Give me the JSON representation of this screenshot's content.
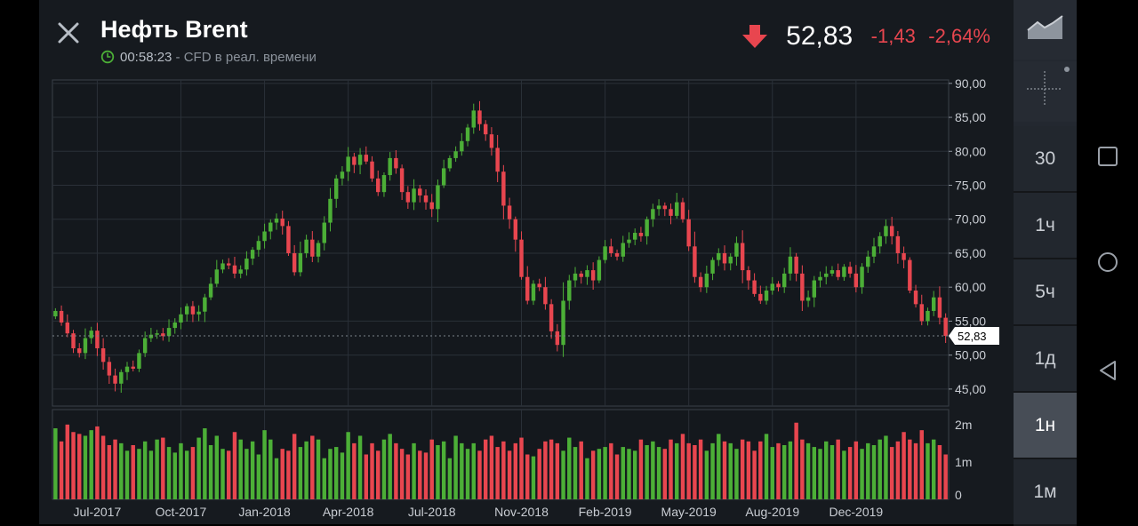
{
  "header": {
    "title": "Нефть Brent",
    "time": "00:58:23",
    "subtitle": " - CFD в реал. времени",
    "last_price": "52,83",
    "change": "-1,43",
    "change_pct": "-2,64%",
    "direction": "down",
    "down_color": "#e8464f"
  },
  "toolbar": {
    "chart_type_icon": "mountain-chart-icon",
    "crosshair_icon": "crosshair-icon",
    "timeframes": [
      "30",
      "1ч",
      "5ч",
      "1д",
      "1н",
      "1м"
    ],
    "active_timeframe": "1н"
  },
  "system_nav": [
    "square-icon",
    "circle-icon",
    "triangle-back-icon"
  ],
  "chart_data": {
    "type": "candlestick",
    "price_axis": {
      "ticks": [
        90,
        85,
        80,
        75,
        70,
        65,
        60,
        55,
        50,
        45
      ],
      "tick_labels": [
        "90,00",
        "85,00",
        "80,00",
        "75,00",
        "70,00",
        "65,00",
        "60,00",
        "55,00",
        "50,00",
        "45,00"
      ],
      "range": [
        42.5,
        90.5
      ],
      "last_price_label": "52,83",
      "last_price": 52.83
    },
    "x_axis": {
      "labels": [
        "Jul-2017",
        "Oct-2017",
        "Jan-2018",
        "Apr-2018",
        "Jul-2018",
        "Nov-2018",
        "Feb-2019",
        "May-2019",
        "Aug-2019",
        "Dec-2019"
      ],
      "label_candle_index": [
        7,
        21,
        35,
        49,
        63,
        78,
        92,
        106,
        120,
        134
      ]
    },
    "volume_axis": {
      "tick_labels": [
        "2m",
        "1m",
        "0"
      ],
      "ticks": [
        2000000,
        1000000,
        0
      ],
      "range": [
        0,
        2400000
      ]
    },
    "colors": {
      "up": "#4caf37",
      "down": "#e8464f"
    },
    "closes": [
      56.5,
      54.8,
      53.2,
      51.0,
      50.3,
      52.5,
      53.6,
      51.0,
      49.0,
      47.0,
      45.8,
      47.5,
      48.3,
      48.0,
      50.3,
      52.5,
      53.0,
      53.2,
      52.8,
      54.0,
      54.8,
      56.0,
      57.2,
      56.0,
      56.4,
      58.5,
      60.5,
      62.6,
      63.5,
      63.2,
      62.0,
      62.6,
      64.2,
      65.5,
      66.8,
      68.2,
      69.5,
      70.1,
      69.0,
      65.0,
      62.2,
      65.0,
      67.0,
      64.5,
      66.5,
      69.5,
      73.0,
      76.0,
      77.0,
      79.2,
      78.0,
      79.5,
      78.5,
      76.0,
      74.0,
      76.5,
      79.0,
      77.5,
      74.0,
      72.5,
      74.5,
      73.5,
      72.5,
      71.5,
      75.0,
      77.5,
      79.0,
      80.0,
      81.5,
      83.5,
      86.0,
      84.0,
      82.5,
      80.5,
      77.0,
      72.0,
      70.0,
      67.0,
      61.5,
      58.0,
      60.5,
      60.0,
      57.5,
      53.5,
      51.5,
      58.0,
      61.0,
      62.0,
      61.5,
      62.5,
      61.0,
      64.0,
      66.0,
      65.0,
      64.5,
      66.5,
      67.0,
      68.0,
      67.5,
      70.0,
      71.5,
      72.0,
      71.5,
      70.5,
      72.5,
      70.0,
      66.0,
      61.5,
      60.0,
      62.0,
      64.0,
      65.0,
      63.5,
      64.5,
      66.5,
      62.5,
      61.0,
      59.0,
      58.0,
      59.5,
      60.5,
      60.0,
      62.0,
      64.5,
      62.0,
      58.0,
      58.5,
      61.0,
      61.5,
      62.0,
      62.5,
      61.5,
      63.0,
      62.0,
      60.0,
      63.0,
      64.5,
      66.0,
      67.5,
      69.0,
      67.5,
      65.0,
      64.0,
      59.5,
      57.5,
      55.0,
      56.5,
      58.5,
      55.5,
      52.83
    ],
    "volumes": [
      1.9,
      1.55,
      2.0,
      1.8,
      1.75,
      1.7,
      1.85,
      1.95,
      1.7,
      1.45,
      1.6,
      1.5,
      1.3,
      1.45,
      1.35,
      1.55,
      1.3,
      1.6,
      1.65,
      1.4,
      1.25,
      1.5,
      1.3,
      1.4,
      1.65,
      1.9,
      1.45,
      1.7,
      1.35,
      1.3,
      1.8,
      1.6,
      1.35,
      1.55,
      1.2,
      1.85,
      1.6,
      1.1,
      1.35,
      1.3,
      1.75,
      1.4,
      1.55,
      1.7,
      1.6,
      1.1,
      1.35,
      1.4,
      1.25,
      1.8,
      1.5,
      1.7,
      1.2,
      1.5,
      1.3,
      1.6,
      1.75,
      1.5,
      1.35,
      1.2,
      1.5,
      1.3,
      1.25,
      1.6,
      1.45,
      1.55,
      1.1,
      1.7,
      1.5,
      1.35,
      1.5,
      1.3,
      1.6,
      1.7,
      1.4,
      1.55,
      1.3,
      1.5,
      1.65,
      1.2,
      1.15,
      1.35,
      1.55,
      1.6,
      1.5,
      1.3,
      1.65,
      1.4,
      1.55,
      1.1,
      1.3,
      1.35,
      1.4,
      1.5,
      1.2,
      1.4,
      1.35,
      1.3,
      1.6,
      1.45,
      1.55,
      1.4,
      1.35,
      1.6,
      1.5,
      1.75,
      1.5,
      1.45,
      1.6,
      1.3,
      1.5,
      1.75,
      1.55,
      1.5,
      1.35,
      1.6,
      1.55,
      1.3,
      1.55,
      1.75,
      1.4,
      1.5,
      1.45,
      1.55,
      2.05,
      1.6,
      1.5,
      1.4,
      1.35,
      1.55,
      1.45,
      1.6,
      1.3,
      1.4,
      1.55,
      1.35,
      1.5,
      1.45,
      1.6,
      1.7,
      1.4,
      1.55,
      1.8,
      1.6,
      1.5,
      1.85,
      1.5,
      1.6,
      1.45,
      1.2
    ]
  }
}
